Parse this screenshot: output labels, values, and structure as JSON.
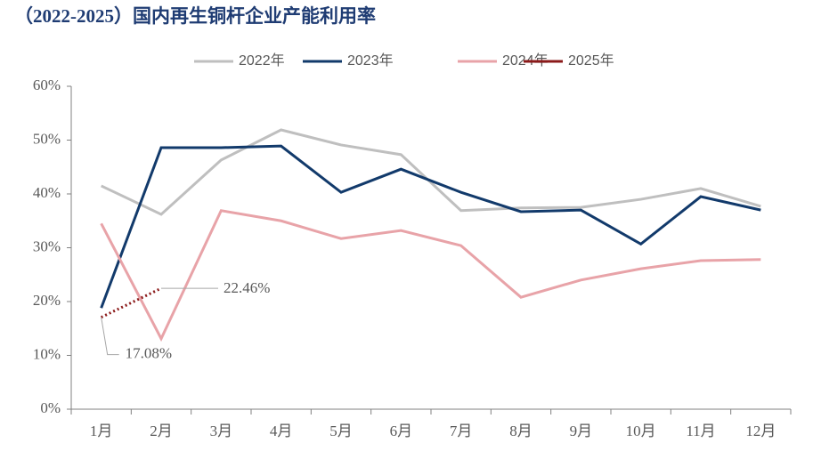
{
  "chart_data": {
    "type": "line",
    "title": "（2022-2025）国内再生铜杆企业产能利用率",
    "categories": [
      "1月",
      "2月",
      "3月",
      "4月",
      "5月",
      "6月",
      "7月",
      "8月",
      "9月",
      "10月",
      "11月",
      "12月"
    ],
    "series": [
      {
        "name": "2022年",
        "color": "#bfbfbf",
        "values": [
          41.5,
          36.2,
          46.3,
          51.9,
          49.1,
          47.3,
          36.9,
          37.4,
          37.5,
          39.0,
          41.0,
          37.7
        ]
      },
      {
        "name": "2023年",
        "color": "#123a6b",
        "values": [
          18.8,
          48.6,
          48.6,
          48.9,
          40.3,
          44.6,
          40.3,
          36.7,
          37.0,
          30.7,
          39.5,
          37.0
        ]
      },
      {
        "name": "2024年",
        "color": "#e8a3a8",
        "values": [
          34.5,
          13.1,
          36.9,
          35.0,
          31.7,
          33.2,
          30.4,
          20.8,
          24.0,
          26.1,
          27.6,
          27.8
        ]
      },
      {
        "name": "2025年",
        "color": "#8b1a1a",
        "line_style": "dotted",
        "values": [
          17.08,
          22.46,
          null,
          null,
          null,
          null,
          null,
          null,
          null,
          null,
          null,
          null
        ],
        "value_labels": [
          "17.08%",
          "22.46%",
          null,
          null,
          null,
          null,
          null,
          null,
          null,
          null,
          null,
          null
        ]
      }
    ],
    "ylim": [
      0,
      60
    ],
    "yticks": [
      {
        "value": 0,
        "label": "0%"
      },
      {
        "value": 10,
        "label": "10%"
      },
      {
        "value": 20,
        "label": "20%"
      },
      {
        "value": 30,
        "label": "30%"
      },
      {
        "value": 40,
        "label": "40%"
      },
      {
        "value": 50,
        "label": "50%"
      },
      {
        "value": 60,
        "label": "60%"
      }
    ],
    "grid": false,
    "legend": "top"
  }
}
